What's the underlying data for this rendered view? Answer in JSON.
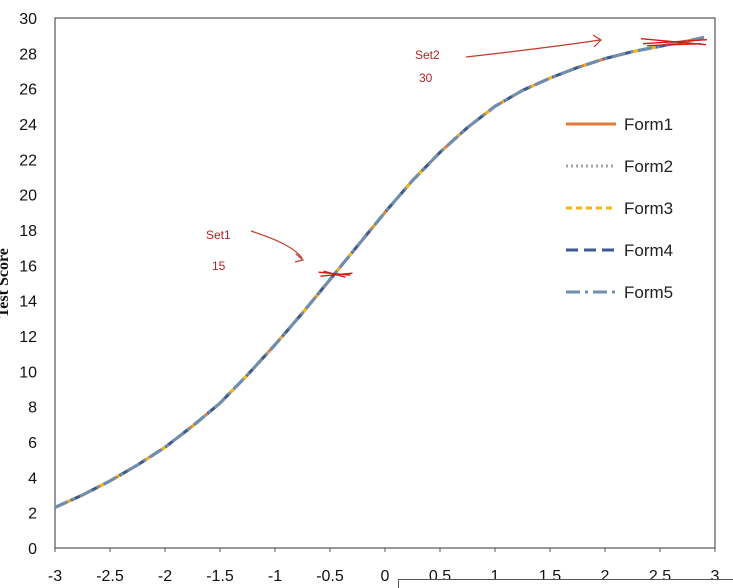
{
  "chart_data": {
    "type": "line",
    "title": "",
    "xlabel": "",
    "ylabel": "Test Score",
    "xlim": [
      -3,
      3
    ],
    "ylim": [
      0,
      30
    ],
    "x_ticks": [
      "-3",
      "-2.5",
      "-2",
      "-1.5",
      "-1",
      "-0.5",
      "0",
      "0.5",
      "1",
      "1.5",
      "2",
      "2.5",
      "3"
    ],
    "y_ticks": [
      "0",
      "2",
      "4",
      "6",
      "8",
      "10",
      "12",
      "14",
      "16",
      "18",
      "20",
      "22",
      "24",
      "26",
      "28",
      "30"
    ],
    "x": [
      -3.0,
      -2.75,
      -2.5,
      -2.25,
      -2.0,
      -1.75,
      -1.5,
      -1.25,
      -1.0,
      -0.75,
      -0.5,
      -0.25,
      0.0,
      0.25,
      0.5,
      0.75,
      1.0,
      1.25,
      1.5,
      1.75,
      2.0,
      2.25,
      2.5,
      2.75,
      2.9
    ],
    "series": [
      {
        "name": "Form1",
        "color": "#e07b39",
        "style": "solid",
        "values": [
          2.3,
          3.0,
          3.8,
          4.7,
          5.7,
          6.9,
          8.2,
          9.8,
          11.5,
          13.3,
          15.2,
          17.1,
          19.0,
          20.8,
          22.4,
          23.8,
          25.0,
          25.9,
          26.6,
          27.2,
          27.7,
          28.1,
          28.4,
          28.7,
          28.9
        ]
      },
      {
        "name": "Form2",
        "color": "#a5a5a5",
        "style": "dotted",
        "values": [
          2.3,
          3.0,
          3.8,
          4.7,
          5.7,
          6.9,
          8.2,
          9.8,
          11.5,
          13.3,
          15.2,
          17.1,
          19.0,
          20.8,
          22.4,
          23.8,
          25.0,
          25.9,
          26.6,
          27.2,
          27.7,
          28.1,
          28.4,
          28.7,
          28.9
        ]
      },
      {
        "name": "Form3",
        "color": "#f2b613",
        "style": "dashed-short",
        "values": [
          2.3,
          3.0,
          3.8,
          4.7,
          5.7,
          6.9,
          8.2,
          9.8,
          11.5,
          13.3,
          15.2,
          17.1,
          19.0,
          20.8,
          22.4,
          23.8,
          25.0,
          25.9,
          26.6,
          27.2,
          27.7,
          28.1,
          28.4,
          28.7,
          28.9
        ]
      },
      {
        "name": "Form4",
        "color": "#3d5a8c",
        "style": "dashed-long",
        "values": [
          2.3,
          3.0,
          3.8,
          4.7,
          5.7,
          6.9,
          8.2,
          9.8,
          11.5,
          13.3,
          15.2,
          17.1,
          19.0,
          20.8,
          22.4,
          23.8,
          25.0,
          25.9,
          26.6,
          27.2,
          27.7,
          28.1,
          28.4,
          28.7,
          28.9
        ]
      },
      {
        "name": "Form5",
        "color": "#6f8fb0",
        "style": "dash-dot",
        "values": [
          2.3,
          3.0,
          3.8,
          4.7,
          5.7,
          6.9,
          8.2,
          9.8,
          11.5,
          13.3,
          15.2,
          17.1,
          19.0,
          20.8,
          22.4,
          23.8,
          25.0,
          25.9,
          26.6,
          27.2,
          27.7,
          28.1,
          28.4,
          28.7,
          28.9
        ]
      }
    ],
    "legend": {
      "position": "right"
    },
    "grid": false,
    "annotations": [
      {
        "label": "Set1",
        "value": "15",
        "target_x": -0.45,
        "target_y": 15.5
      },
      {
        "label": "Set2",
        "value": "30",
        "target_x": 2.6,
        "target_y": 28.6
      }
    ]
  }
}
